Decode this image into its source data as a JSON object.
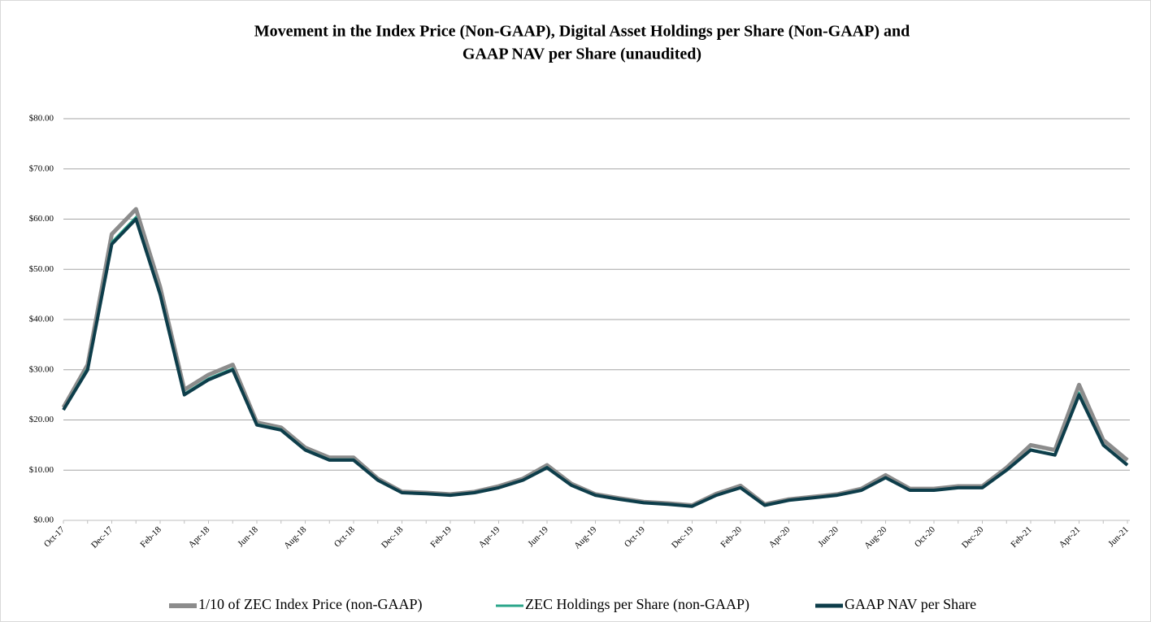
{
  "chart_data": {
    "type": "line",
    "title": [
      "Movement in the Index Price (Non-GAAP), Digital Asset Holdings per Share (Non-GAAP) and",
      "GAAP NAV per Share (unaudited)"
    ],
    "categories": [
      "Oct-17",
      null,
      "Dec-17",
      null,
      "Feb-18",
      null,
      "Apr-18",
      null,
      "Jun-18",
      null,
      "Aug-18",
      null,
      "Oct-18",
      null,
      "Dec-18",
      null,
      "Feb-19",
      null,
      "Apr-19",
      null,
      "Jun-19",
      null,
      "Aug-19",
      null,
      "Oct-19",
      null,
      "Dec-19",
      null,
      "Feb-20",
      null,
      "Apr-20",
      null,
      "Jun-20",
      null,
      "Aug-20",
      null,
      "Oct-20",
      null,
      "Dec-20",
      null,
      "Feb-21",
      null,
      "Apr-21",
      null,
      "Jun-21"
    ],
    "series": [
      {
        "name": "1/10 of ZEC Index Price (non-GAAP)",
        "color": "#8c8c8c",
        "values": [
          22.5,
          31,
          57,
          62,
          46.5,
          26,
          29,
          31,
          19.5,
          18.5,
          14.5,
          12.5,
          12.5,
          8.3,
          5.7,
          5.5,
          5.2,
          5.7,
          6.8,
          8.3,
          11,
          7.3,
          5.2,
          4.4,
          3.7,
          3.4,
          3,
          5.3,
          6.9,
          3.2,
          4.2,
          4.7,
          5.2,
          6.3,
          9,
          6.3,
          6.3,
          6.8,
          6.8,
          10.5,
          15,
          14,
          27,
          16,
          12
        ]
      },
      {
        "name": "ZEC Holdings per Share (non-GAAP)",
        "color": "#2aa58a",
        "values": [
          22.2,
          30.5,
          55.5,
          60.5,
          45.5,
          25.3,
          28.3,
          30.3,
          19.2,
          18.2,
          14.2,
          12.2,
          12.2,
          8.1,
          5.6,
          5.4,
          5.1,
          5.6,
          6.6,
          8.1,
          10.7,
          7.1,
          5.1,
          4.3,
          3.6,
          3.3,
          2.9,
          5.1,
          6.6,
          3.1,
          4.1,
          4.6,
          5.1,
          6.1,
          8.6,
          6.1,
          6.1,
          6.6,
          6.6,
          10.1,
          14.2,
          13.2,
          25.5,
          15.2,
          11.2
        ]
      },
      {
        "name": "GAAP NAV per Share",
        "color": "#0d3d4a",
        "values": [
          22,
          30,
          55,
          60,
          45,
          25,
          28,
          30,
          19,
          18,
          14,
          12,
          12,
          8,
          5.5,
          5.3,
          5,
          5.5,
          6.5,
          8,
          10.5,
          7,
          5,
          4.2,
          3.5,
          3.2,
          2.8,
          5,
          6.5,
          3,
          4,
          4.5,
          5,
          6,
          8.5,
          6,
          6,
          6.5,
          6.5,
          10,
          14,
          13,
          25,
          15,
          11
        ]
      }
    ],
    "ylim": [
      0,
      80
    ],
    "yticks": [
      {
        "value": 0,
        "label": "$0.00"
      },
      {
        "value": 10,
        "label": "$10.00"
      },
      {
        "value": 20,
        "label": "$20.00"
      },
      {
        "value": 30,
        "label": "$30.00"
      },
      {
        "value": 40,
        "label": "$40.00"
      },
      {
        "value": 50,
        "label": "$50.00"
      },
      {
        "value": 60,
        "label": "$60.00"
      },
      {
        "value": 70,
        "label": "$70.00"
      },
      {
        "value": 80,
        "label": "$80.00"
      }
    ],
    "grid": true,
    "legend": "bottom"
  }
}
